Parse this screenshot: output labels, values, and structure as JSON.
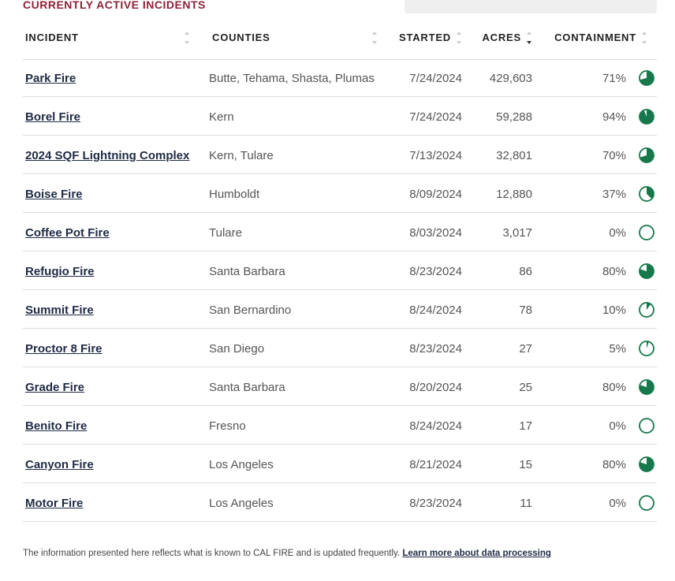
{
  "header": {
    "title": "CURRENTLY ACTIVE INCIDENTS"
  },
  "table": {
    "columns": [
      "INCIDENT",
      "COUNTIES",
      "STARTED",
      "ACRES",
      "CONTAINMENT"
    ],
    "rows": [
      {
        "incident": "Park Fire",
        "counties": "Butte, Tehama, Shasta, Plumas",
        "started": "7/24/2024",
        "acres": "429,603",
        "containment": {
          "value": 71,
          "label": "71%"
        }
      },
      {
        "incident": "Borel Fire",
        "counties": "Kern",
        "started": "7/24/2024",
        "acres": "59,288",
        "containment": {
          "value": 94,
          "label": "94%"
        }
      },
      {
        "incident": "2024 SQF Lightning Complex",
        "counties": "Kern, Tulare",
        "started": "7/13/2024",
        "acres": "32,801",
        "containment": {
          "value": 70,
          "label": "70%"
        }
      },
      {
        "incident": "Boise Fire",
        "counties": "Humboldt",
        "started": "8/09/2024",
        "acres": "12,880",
        "containment": {
          "value": 37,
          "label": "37%"
        }
      },
      {
        "incident": "Coffee Pot Fire",
        "counties": "Tulare",
        "started": "8/03/2024",
        "acres": "3,017",
        "containment": {
          "value": 0,
          "label": "0%"
        }
      },
      {
        "incident": "Refugio Fire",
        "counties": "Santa Barbara",
        "started": "8/23/2024",
        "acres": "86",
        "containment": {
          "value": 80,
          "label": "80%"
        }
      },
      {
        "incident": "Summit Fire",
        "counties": "San Bernardino",
        "started": "8/24/2024",
        "acres": "78",
        "containment": {
          "value": 10,
          "label": "10%"
        }
      },
      {
        "incident": "Proctor 8 Fire",
        "counties": "San Diego",
        "started": "8/23/2024",
        "acres": "27",
        "containment": {
          "value": 5,
          "label": "5%"
        }
      },
      {
        "incident": "Grade Fire",
        "counties": "Santa Barbara",
        "started": "8/20/2024",
        "acres": "25",
        "containment": {
          "value": 80,
          "label": "80%"
        }
      },
      {
        "incident": "Benito Fire",
        "counties": "Fresno",
        "started": "8/24/2024",
        "acres": "17",
        "containment": {
          "value": 0,
          "label": "0%"
        }
      },
      {
        "incident": "Canyon Fire",
        "counties": "Los Angeles",
        "started": "8/21/2024",
        "acres": "15",
        "containment": {
          "value": 80,
          "label": "80%"
        }
      },
      {
        "incident": "Motor Fire",
        "counties": "Los Angeles",
        "started": "8/23/2024",
        "acres": "11",
        "containment": {
          "value": 0,
          "label": "0%"
        }
      }
    ]
  },
  "footer": {
    "text": "The information presented here reflects what is known to CAL FIRE and is updated frequently.",
    "link": "Learn more about data processing"
  }
}
